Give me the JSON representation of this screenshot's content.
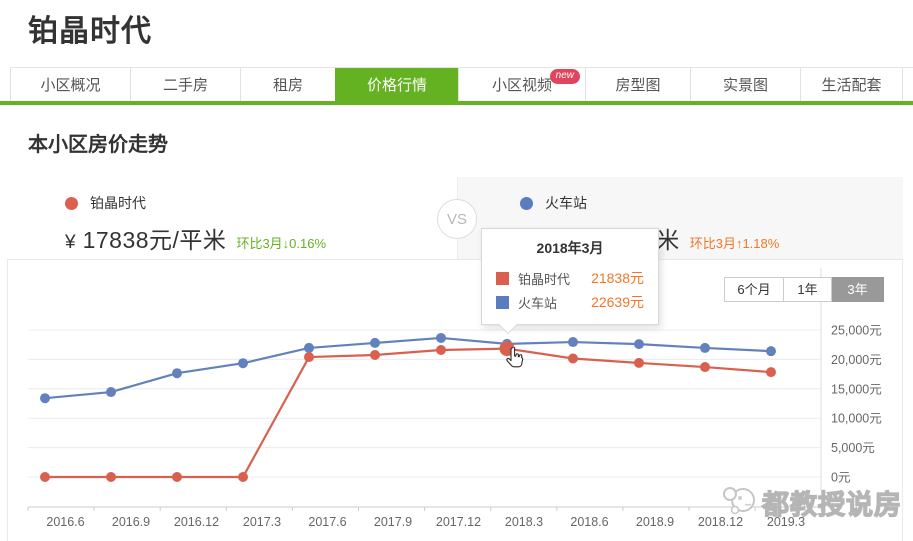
{
  "page": {
    "title": "铂晶时代"
  },
  "tabs": {
    "items": [
      {
        "label": "小区概况"
      },
      {
        "label": "二手房"
      },
      {
        "label": "租房"
      },
      {
        "label": "价格行情",
        "active": true
      },
      {
        "label": "小区视频",
        "badge": "new"
      },
      {
        "label": "房型图"
      },
      {
        "label": "实景图"
      },
      {
        "label": "生活配套"
      }
    ]
  },
  "section": {
    "title": "本小区房价走势"
  },
  "compare": {
    "left": {
      "name": "铂晶时代",
      "currency": "¥",
      "price": "17838元/平米",
      "change": "环比3月↓0.16%",
      "dot_color": "#dd5f50",
      "change_color": "#64b221"
    },
    "vs": "VS",
    "right": {
      "name": "火车站",
      "currency": "¥",
      "price": "21188元/平米",
      "change": "环比3月↑1.18%",
      "dot_color": "#5b7cbe",
      "change_color": "#f07728"
    }
  },
  "period": {
    "options": [
      {
        "label": "6个月"
      },
      {
        "label": "1年"
      },
      {
        "label": "3年",
        "active": true
      }
    ]
  },
  "tooltip": {
    "title": "2018年3月",
    "rows": [
      {
        "name": "铂晶时代",
        "value": "21838元",
        "color": "#d9604f"
      },
      {
        "name": "火车站",
        "value": "22639元",
        "color": "#5b7cbe"
      }
    ]
  },
  "chart_data": {
    "type": "line",
    "title": "本小区房价走势",
    "categories": [
      "2016.6",
      "2016.9",
      "2016.12",
      "2017.3",
      "2017.6",
      "2017.9",
      "2017.12",
      "2018.3",
      "2018.6",
      "2018.9",
      "2018.12",
      "2019.3"
    ],
    "series": [
      {
        "name": "铂晶时代",
        "color": "#d9604f",
        "values": [
          0,
          0,
          0,
          0,
          20400,
          20750,
          21600,
          21838,
          20150,
          19400,
          18700,
          17838
        ]
      },
      {
        "name": "火车站",
        "color": "#6381bd",
        "values": [
          13400,
          14450,
          17650,
          19350,
          21950,
          22800,
          23650,
          22639,
          22950,
          22600,
          21950,
          21400
        ]
      }
    ],
    "y_ticks": [
      {
        "value": 0,
        "label": "0元"
      },
      {
        "value": 5000,
        "label": "5,000元"
      },
      {
        "value": 10000,
        "label": "10,000元"
      },
      {
        "value": 15000,
        "label": "15,000元"
      },
      {
        "value": 20000,
        "label": "20,000元"
      },
      {
        "value": 25000,
        "label": "25,000元"
      }
    ],
    "ylim": [
      0,
      25000
    ],
    "grid": true,
    "y_axis_position": "right",
    "hover_index": 7,
    "legend_position": "top-panels"
  },
  "watermark": {
    "text": "都教授说房"
  }
}
